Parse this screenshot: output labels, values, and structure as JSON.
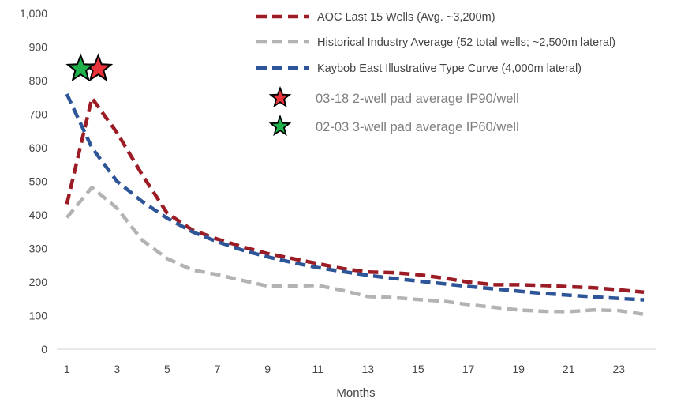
{
  "chart_data": {
    "type": "line",
    "title": "",
    "xlabel": "Months",
    "ylabel": "",
    "x": [
      1,
      2,
      3,
      4,
      5,
      6,
      7,
      8,
      9,
      10,
      11,
      12,
      13,
      14,
      15,
      16,
      17,
      18,
      19,
      20,
      21,
      22,
      23,
      24
    ],
    "xticks": [
      "1",
      "3",
      "5",
      "7",
      "9",
      "11",
      "13",
      "15",
      "17",
      "19",
      "21",
      "23"
    ],
    "xtick_values": [
      1,
      3,
      5,
      7,
      9,
      11,
      13,
      15,
      17,
      19,
      21,
      23
    ],
    "xlim": [
      0.6,
      24.5
    ],
    "ylim": [
      0,
      1000
    ],
    "yticks": [
      "0",
      "100",
      "200",
      "300",
      "400",
      "500",
      "600",
      "700",
      "800",
      "900",
      "1,000"
    ],
    "ytick_values": [
      0,
      100,
      200,
      300,
      400,
      500,
      600,
      700,
      800,
      900,
      1000
    ],
    "grid": false,
    "legend_position": "top-right",
    "series": [
      {
        "name": "AOC Last 15 Wells (Avg. ~3,200m)",
        "color": "#9b1c24",
        "dash": true,
        "values": [
          432,
          748,
          645,
          520,
          405,
          355,
          328,
          305,
          285,
          270,
          255,
          240,
          230,
          228,
          222,
          212,
          200,
          192,
          192,
          190,
          186,
          183,
          177,
          170
        ]
      },
      {
        "name": "Historical Industry Average (52 total wells; ~2,500m lateral)",
        "color": "#b3b3b3",
        "dash": true,
        "values": [
          392,
          482,
          420,
          325,
          270,
          236,
          222,
          205,
          188,
          188,
          190,
          175,
          157,
          154,
          148,
          143,
          133,
          125,
          117,
          113,
          112,
          117,
          115,
          104
        ]
      },
      {
        "name": "Kaybob East Illustrative Type Curve (4,000m lateral)",
        "color": "#2e5597",
        "dash": true,
        "values": [
          760,
          600,
          500,
          440,
          390,
          350,
          320,
          295,
          275,
          258,
          243,
          231,
          220,
          211,
          203,
          195,
          187,
          180,
          173,
          166,
          161,
          156,
          151,
          147
        ]
      }
    ],
    "markers": [
      {
        "name": "03-18 2-well pad average IP90/well",
        "x": 2.25,
        "y": 835,
        "fill": "#e8333a",
        "stroke": "#000000"
      },
      {
        "name": "02-03 3-well pad average IP60/well",
        "x": 1.55,
        "y": 835,
        "fill": "#1fb24b",
        "stroke": "#000000"
      }
    ]
  }
}
